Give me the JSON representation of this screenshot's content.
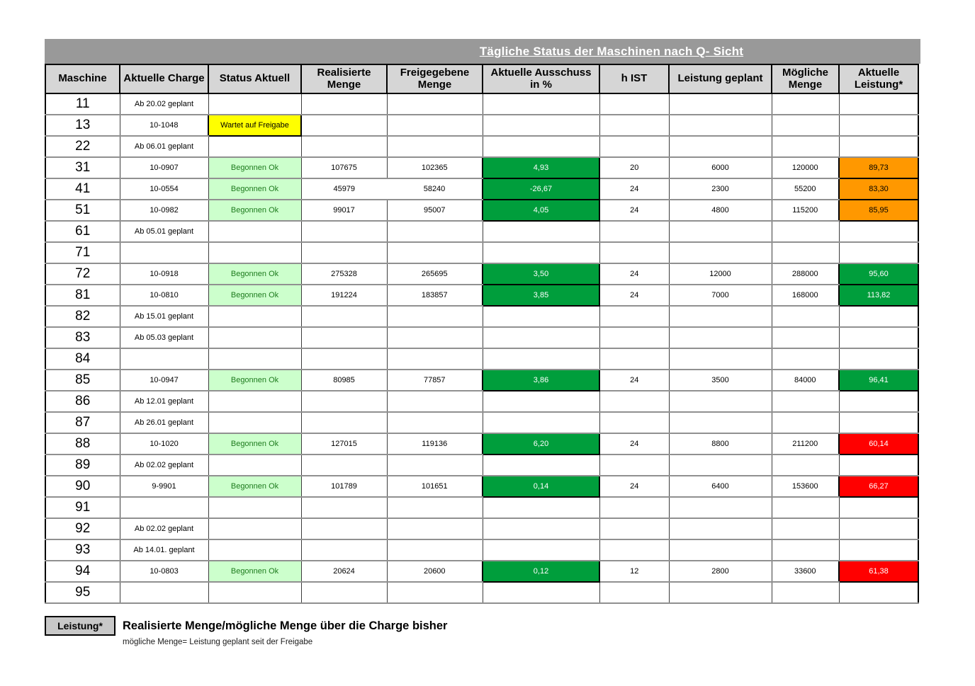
{
  "title": "Tägliche Status der Maschinen nach Q- Sicht",
  "columns": [
    "Maschine",
    "Aktuelle Charge",
    "Status Aktuell",
    "Realisierte Menge",
    "Freigegebene Menge",
    "Aktuelle Ausschuss in %",
    "h IST",
    "Leistung geplant",
    "Mögliche Menge",
    "Aktuelle Leistung*"
  ],
  "column_keys": [
    "maschine",
    "aktuelle-charge",
    "status-aktuell",
    "realisierte-menge",
    "freigegebene-menge",
    "aktuelle-ausschuss",
    "h-ist",
    "leistung-geplant",
    "moegliche-menge",
    "aktuelle-leistung"
  ],
  "rows": [
    {
      "machine": "11",
      "charge": "Ab 20.02 geplant",
      "status": "",
      "status_style": "",
      "realisierte": "",
      "freigegebene": "",
      "merge_menge": false,
      "ausschuss": "",
      "h_ist": "",
      "leistung_geplant": "",
      "moegliche_menge": "",
      "leistung": "",
      "leistung_style": ""
    },
    {
      "machine": "13",
      "charge": "10-1048",
      "status": "Wartet auf Freigabe",
      "status_style": "yellow",
      "realisierte": "",
      "freigegebene": "",
      "merge_menge": false,
      "ausschuss": "",
      "h_ist": "",
      "leistung_geplant": "",
      "moegliche_menge": "",
      "leistung": "",
      "leistung_style": ""
    },
    {
      "machine": "22",
      "charge": "Ab 06.01 geplant",
      "status": "",
      "status_style": "",
      "realisierte": "",
      "freigegebene": "",
      "merge_menge": false,
      "ausschuss": "",
      "h_ist": "",
      "leistung_geplant": "",
      "moegliche_menge": "",
      "leistung": "",
      "leistung_style": ""
    },
    {
      "machine": "31",
      "charge": "10-0907",
      "status": "Begonnen Ok",
      "status_style": "green",
      "realisierte": "107675",
      "freigegebene": "102365",
      "merge_menge": false,
      "ausschuss": "4,93",
      "h_ist": "20",
      "leistung_geplant": "6000",
      "moegliche_menge": "120000",
      "leistung": "89,73",
      "leistung_style": "orange"
    },
    {
      "machine": "41",
      "charge": "10-0554",
      "status": "Begonnen Ok",
      "status_style": "green",
      "realisierte": "45979",
      "freigegebene": "58240",
      "merge_menge": true,
      "ausschuss": "-26,67",
      "h_ist": "24",
      "leistung_geplant": "2300",
      "moegliche_menge": "55200",
      "leistung": "83,30",
      "leistung_style": "orange"
    },
    {
      "machine": "51",
      "charge": "10-0982",
      "status": "Begonnen Ok",
      "status_style": "green",
      "realisierte": "99017",
      "freigegebene": "95007",
      "merge_menge": false,
      "ausschuss": "4,05",
      "h_ist": "24",
      "leistung_geplant": "4800",
      "moegliche_menge": "115200",
      "leistung": "85,95",
      "leistung_style": "orange"
    },
    {
      "machine": "61",
      "charge": "Ab 05.01 geplant",
      "status": "",
      "status_style": "",
      "realisierte": "",
      "freigegebene": "",
      "merge_menge": false,
      "ausschuss": "",
      "h_ist": "",
      "leistung_geplant": "",
      "moegliche_menge": "",
      "leistung": "",
      "leistung_style": ""
    },
    {
      "machine": "71",
      "charge": "",
      "status": "",
      "status_style": "",
      "realisierte": "",
      "freigegebene": "",
      "merge_menge": false,
      "ausschuss": "",
      "h_ist": "",
      "leistung_geplant": "",
      "moegliche_menge": "",
      "leistung": "",
      "leistung_style": ""
    },
    {
      "machine": "72",
      "charge": "10-0918",
      "status": "Begonnen Ok",
      "status_style": "green",
      "realisierte": "275328",
      "freigegebene": "265695",
      "merge_menge": false,
      "ausschuss": "3,50",
      "h_ist": "24",
      "leistung_geplant": "12000",
      "moegliche_menge": "288000",
      "leistung": "95,60",
      "leistung_style": "green"
    },
    {
      "machine": "81",
      "charge": "10-0810",
      "status": "Begonnen Ok",
      "status_style": "green",
      "realisierte": "191224",
      "freigegebene": "183857",
      "merge_menge": false,
      "ausschuss": "3,85",
      "h_ist": "24",
      "leistung_geplant": "7000",
      "moegliche_menge": "168000",
      "leistung": "113,82",
      "leistung_style": "green"
    },
    {
      "machine": "82",
      "charge": "Ab 15.01 geplant",
      "status": "",
      "status_style": "",
      "realisierte": "",
      "freigegebene": "",
      "merge_menge": false,
      "ausschuss": "",
      "h_ist": "",
      "leistung_geplant": "",
      "moegliche_menge": "",
      "leistung": "",
      "leistung_style": ""
    },
    {
      "machine": "83",
      "charge": "Ab 05.03 geplant",
      "status": "",
      "status_style": "",
      "realisierte": "",
      "freigegebene": "",
      "merge_menge": false,
      "ausschuss": "",
      "h_ist": "",
      "leistung_geplant": "",
      "moegliche_menge": "",
      "leistung": "",
      "leistung_style": ""
    },
    {
      "machine": "84",
      "charge": "",
      "status": "",
      "status_style": "",
      "realisierte": "",
      "freigegebene": "",
      "merge_menge": false,
      "ausschuss": "",
      "h_ist": "",
      "leistung_geplant": "",
      "moegliche_menge": "",
      "leistung": "",
      "leistung_style": ""
    },
    {
      "machine": "85",
      "charge": "10-0947",
      "status": "Begonnen Ok",
      "status_style": "green",
      "realisierte": "80985",
      "freigegebene": "77857",
      "merge_menge": false,
      "ausschuss": "3,86",
      "h_ist": "24",
      "leistung_geplant": "3500",
      "moegliche_menge": "84000",
      "leistung": "96,41",
      "leistung_style": "green"
    },
    {
      "machine": "86",
      "charge": "Ab 12.01 geplant",
      "status": "",
      "status_style": "",
      "realisierte": "",
      "freigegebene": "",
      "merge_menge": false,
      "ausschuss": "",
      "h_ist": "",
      "leistung_geplant": "",
      "moegliche_menge": "",
      "leistung": "",
      "leistung_style": ""
    },
    {
      "machine": "87",
      "charge": "Ab 26.01 geplant",
      "status": "",
      "status_style": "",
      "realisierte": "",
      "freigegebene": "",
      "merge_menge": false,
      "ausschuss": "",
      "h_ist": "",
      "leistung_geplant": "",
      "moegliche_menge": "",
      "leistung": "",
      "leistung_style": ""
    },
    {
      "machine": "88",
      "charge": "10-1020",
      "status": "Begonnen Ok",
      "status_style": "green",
      "realisierte": "127015",
      "freigegebene": "119136",
      "merge_menge": false,
      "ausschuss": "6,20",
      "h_ist": "24",
      "leistung_geplant": "8800",
      "moegliche_menge": "211200",
      "leistung": "60,14",
      "leistung_style": "red"
    },
    {
      "machine": "89",
      "charge": "Ab 02.02 geplant",
      "status": "",
      "status_style": "",
      "realisierte": "",
      "freigegebene": "",
      "merge_menge": false,
      "ausschuss": "",
      "h_ist": "",
      "leistung_geplant": "",
      "moegliche_menge": "",
      "leistung": "",
      "leistung_style": ""
    },
    {
      "machine": "90",
      "charge": "9-9901",
      "status": "Begonnen Ok",
      "status_style": "green",
      "realisierte": "101789",
      "freigegebene": "101651",
      "merge_menge": false,
      "ausschuss": "0,14",
      "h_ist": "24",
      "leistung_geplant": "6400",
      "moegliche_menge": "153600",
      "leistung": "66,27",
      "leistung_style": "red"
    },
    {
      "machine": "91",
      "charge": "",
      "status": "",
      "status_style": "",
      "realisierte": "",
      "freigegebene": "",
      "merge_menge": false,
      "ausschuss": "",
      "h_ist": "",
      "leistung_geplant": "",
      "moegliche_menge": "",
      "leistung": "",
      "leistung_style": ""
    },
    {
      "machine": "92",
      "charge": "Ab 02.02 geplant",
      "status": "",
      "status_style": "",
      "realisierte": "",
      "freigegebene": "",
      "merge_menge": false,
      "ausschuss": "",
      "h_ist": "",
      "leistung_geplant": "",
      "moegliche_menge": "",
      "leistung": "",
      "leistung_style": ""
    },
    {
      "machine": "93",
      "charge": "Ab 14.01. geplant",
      "status": "",
      "status_style": "",
      "realisierte": "",
      "freigegebene": "",
      "merge_menge": false,
      "ausschuss": "",
      "h_ist": "",
      "leistung_geplant": "",
      "moegliche_menge": "",
      "leistung": "",
      "leistung_style": ""
    },
    {
      "machine": "94",
      "charge": "10-0803",
      "status": "Begonnen Ok",
      "status_style": "green",
      "realisierte": "20624",
      "freigegebene": "20600",
      "merge_menge": false,
      "ausschuss": "0,12",
      "h_ist": "12",
      "leistung_geplant": "2800",
      "moegliche_menge": "33600",
      "leistung": "61,38",
      "leistung_style": "red"
    },
    {
      "machine": "95",
      "charge": "",
      "status": "",
      "status_style": "",
      "realisierte": "",
      "freigegebene": "",
      "merge_menge": false,
      "ausschuss": "",
      "h_ist": "",
      "leistung_geplant": "",
      "moegliche_menge": "",
      "leistung": "",
      "leistung_style": ""
    }
  ],
  "footer": {
    "label": "Leistung*",
    "definition": "Realisierte Menge/mögliche Menge über die Charge bisher",
    "note": "mögliche Menge= Leistung geplant seit der Freigabe"
  },
  "colors": {
    "title_bar_bg": "#999999",
    "title_text": "#ffffff",
    "header_bg": "#d6d6d6",
    "fill_green": "#009e3c",
    "fill_orange": "#ff9800",
    "fill_red": "#ff0000",
    "status_yellow_bg": "#ffff00",
    "status_green_bg": "#ccffcc",
    "status_green_text": "#1e7b1e",
    "legend_box_bg": "#c8c8c8"
  }
}
